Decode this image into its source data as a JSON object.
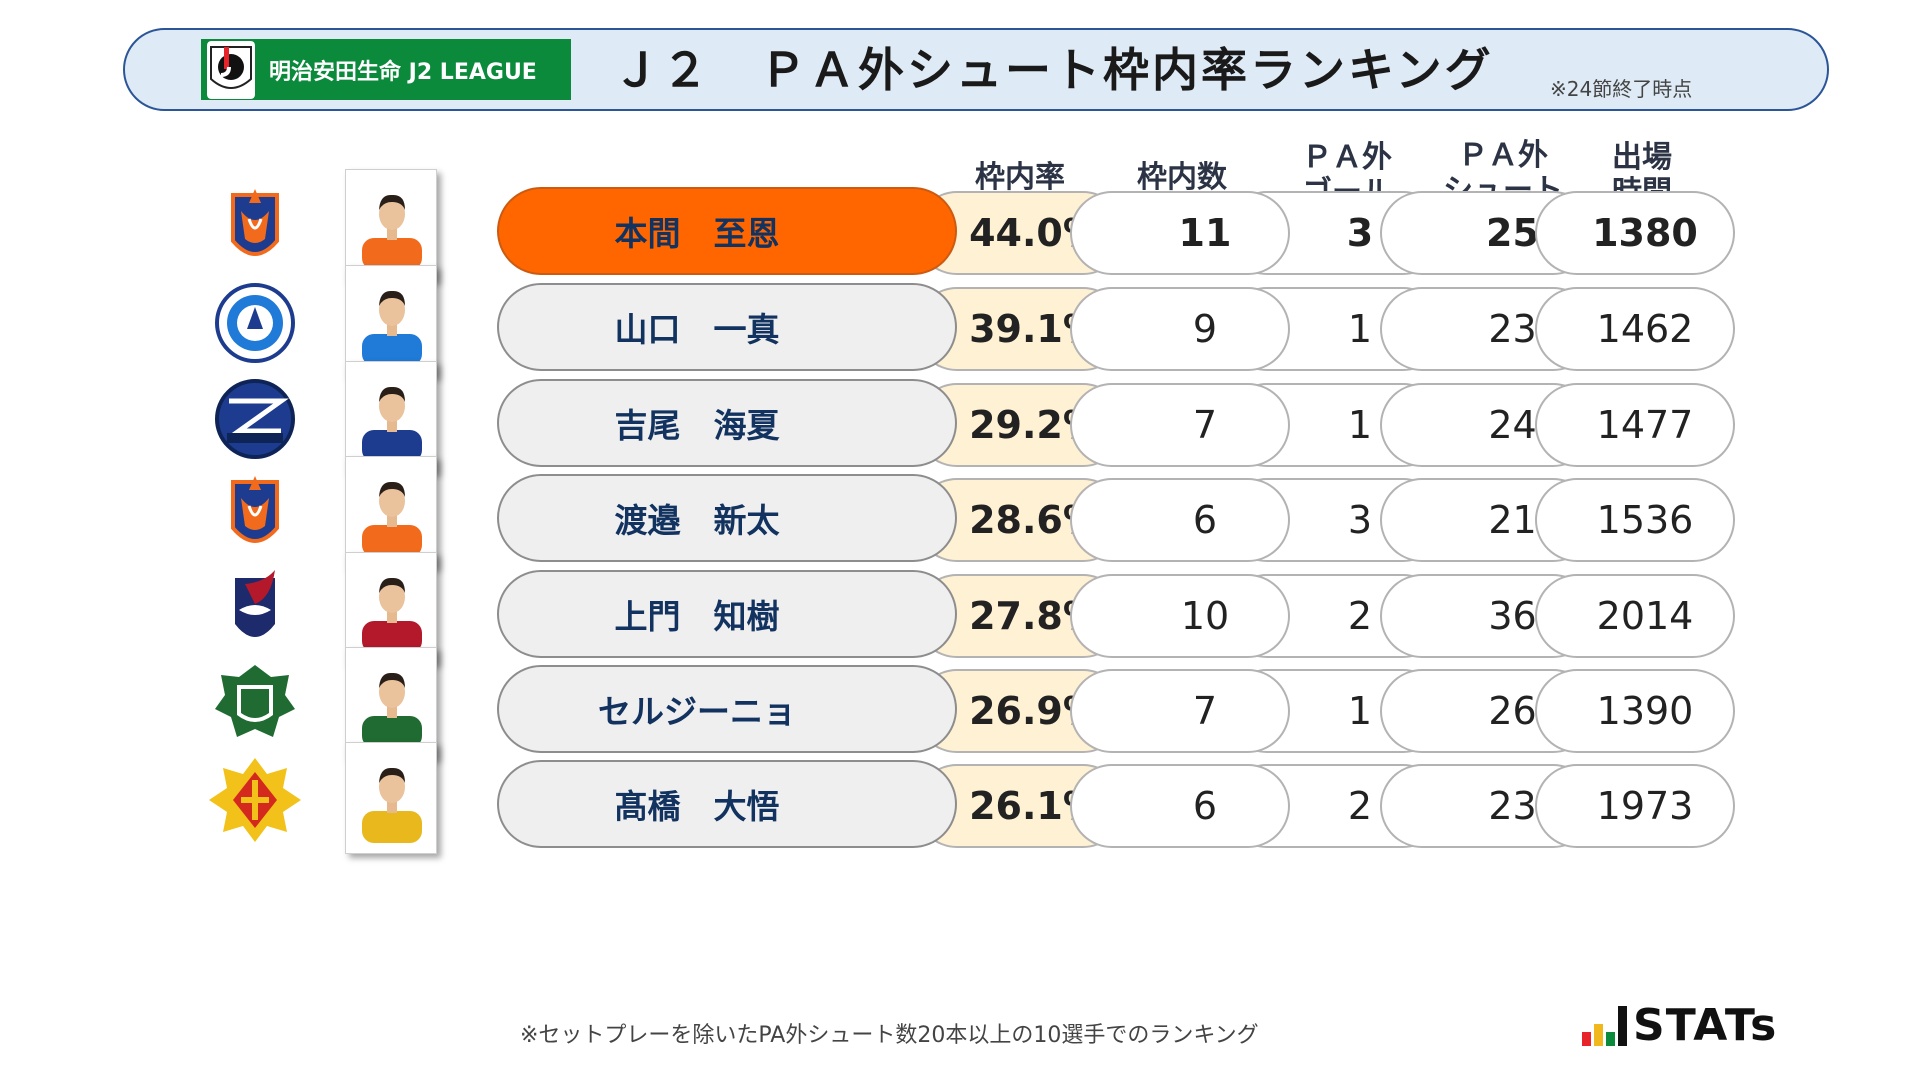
{
  "header": {
    "league_name": "明治安田生命 J2 LEAGUE",
    "title": "Ｊ２　ＰＡ外シュート枠内率ランキング",
    "note": "※24節終了時点"
  },
  "columns": {
    "rate": "枠内率",
    "on_target": "枠内数",
    "pa_goal_line1": "ＰＡ外",
    "pa_goal_line2": "ゴール",
    "pa_shot_line1": "ＰＡ外",
    "pa_shot_line2": "シュート",
    "time_line1": "出場",
    "time_line2": "時間"
  },
  "rows": [
    {
      "name": "本間　至恩",
      "rate": "44.0%",
      "on_target": "11",
      "pa_goals": "3",
      "pa_shots": "25",
      "minutes": "1380",
      "club_icon": "albirex-niigata-crest",
      "kit_color": "#f26b1d"
    },
    {
      "name": "山口　一真",
      "rate": "39.1%",
      "on_target": "9",
      "pa_goals": "1",
      "pa_shots": "23",
      "minutes": "1462",
      "club_icon": "mito-hollyhock-crest",
      "kit_color": "#1f7ad8"
    },
    {
      "name": "吉尾　海夏",
      "rate": "29.2%",
      "on_target": "7",
      "pa_goals": "1",
      "pa_shots": "24",
      "minutes": "1477",
      "club_icon": "machida-zelvia-crest",
      "kit_color": "#1d3c8f"
    },
    {
      "name": "渡邉　新太",
      "rate": "28.6%",
      "on_target": "6",
      "pa_goals": "3",
      "pa_shots": "21",
      "minutes": "1536",
      "club_icon": "albirex-niigata-crest",
      "kit_color": "#f26b1d"
    },
    {
      "name": "上門　知樹",
      "rate": "27.8%",
      "on_target": "10",
      "pa_goals": "2",
      "pa_shots": "36",
      "minutes": "2014",
      "club_icon": "fagiano-okayama-crest",
      "kit_color": "#b3182b"
    },
    {
      "name": "セルジーニョ",
      "rate": "26.9%",
      "on_target": "7",
      "pa_goals": "1",
      "pa_shots": "26",
      "minutes": "1390",
      "club_icon": "matsumoto-yamaga-crest",
      "kit_color": "#1f6b32"
    },
    {
      "name": "髙橋　大悟",
      "rate": "26.1%",
      "on_target": "6",
      "pa_goals": "2",
      "pa_shots": "23",
      "minutes": "1973",
      "club_icon": "giravanz-kitakyushu-crest",
      "kit_color": "#e8b81c"
    }
  ],
  "footer": {
    "note": "※セットプレーを除いたPA外シュート数20本以上の10選手でのランキング",
    "brand": "STATs",
    "brand_bar_colors": [
      "#e8242b",
      "#f0b81c",
      "#0b8a3c",
      "#111111"
    ]
  }
}
